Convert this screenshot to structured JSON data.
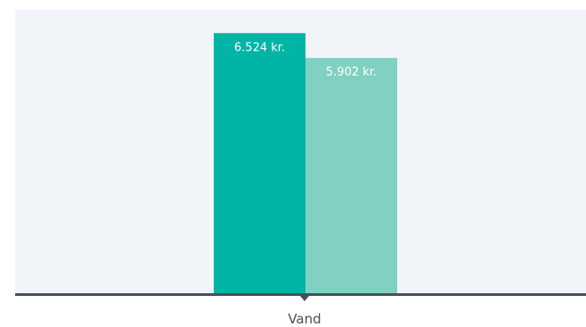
{
  "chart_data": {
    "type": "bar",
    "categories": [
      "Vand"
    ],
    "series": [
      {
        "values": [
          6524
        ],
        "label": "6.524 kr.",
        "color": "#00B4A6"
      },
      {
        "values": [
          5902
        ],
        "label": "5.902 kr.",
        "color": "#80D1C2"
      }
    ],
    "ylim": [
      0,
      7110
    ],
    "grid": false,
    "legend": "none",
    "plot_background": "#F1F5F9",
    "axis_color": "#46505A",
    "label_text_color": "#FFFFFF",
    "tick_text_color": "#4A4F55"
  }
}
